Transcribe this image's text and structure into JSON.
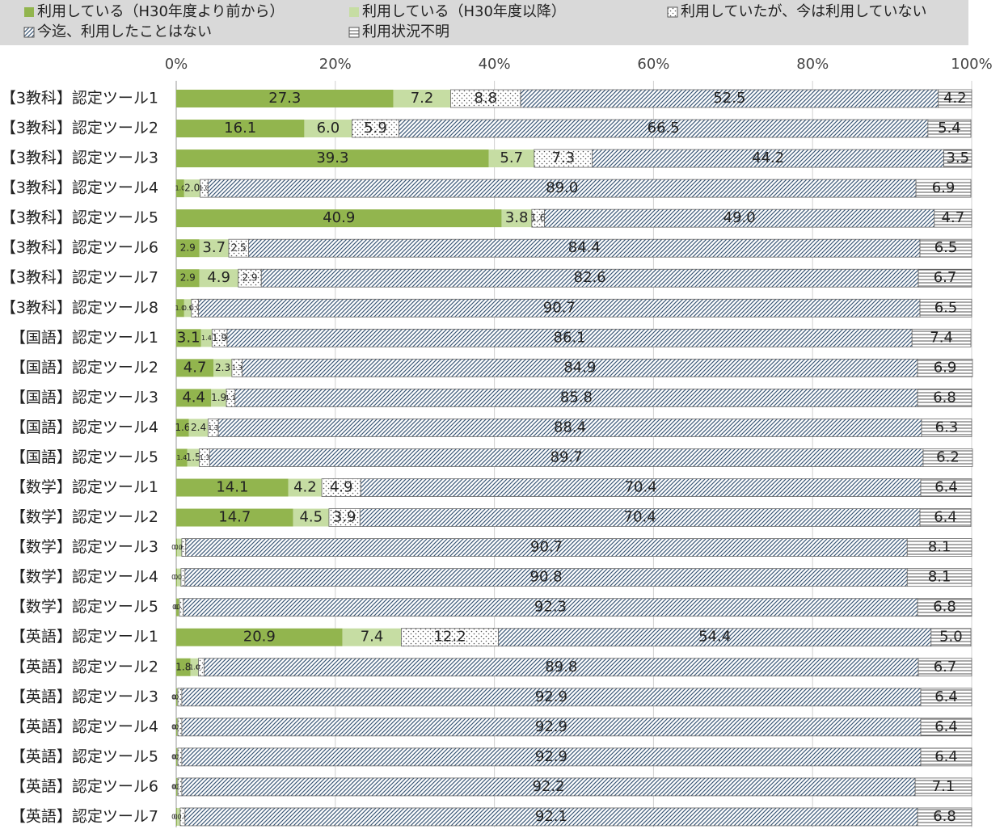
{
  "chart_data": {
    "type": "stacked_bar_horizontal",
    "categories": [
      "【3教科】認定ツール1",
      "【3教科】認定ツール2",
      "【3教科】認定ツール3",
      "【3教科】認定ツール4",
      "【3教科】認定ツール5",
      "【3教科】認定ツール6",
      "【3教科】認定ツール7",
      "【3教科】認定ツール8",
      "【国語】認定ツール1",
      "【国語】認定ツール2",
      "【国語】認定ツール3",
      "【国語】認定ツール4",
      "【国語】認定ツール5",
      "【数学】認定ツール1",
      "【数学】認定ツール2",
      "【数学】認定ツール3",
      "【数学】認定ツール4",
      "【数学】認定ツール5",
      "【英語】認定ツール1",
      "【英語】認定ツール2",
      "【英語】認定ツール3",
      "【英語】認定ツール4",
      "【英語】認定ツール5",
      "【英語】認定ツール6",
      "【英語】認定ツール7"
    ],
    "series": [
      {
        "name": "利用している（H30年度より前から）",
        "color": "#92b54e",
        "values": [
          27.3,
          16.1,
          39.3,
          1.0,
          40.9,
          2.9,
          2.9,
          1.0,
          3.1,
          4.7,
          4.4,
          1.6,
          1.4,
          14.1,
          14.7,
          0.1,
          0.1,
          0.3,
          20.9,
          1.8,
          0.1,
          0.1,
          0.1,
          0.1,
          0.1
        ],
        "value_labels": [
          "27.3",
          "16.1",
          "39.3",
          "1.0",
          "40.9",
          "2.9",
          "2.9",
          "1.0",
          "3.1",
          "4.7",
          "4.4",
          "1.6",
          "1.4",
          "14.1",
          "14.7",
          "0.1",
          "0.1",
          "0.3",
          "20.9",
          "1.8",
          "0.1",
          "0.1",
          "0.1",
          "0.1",
          "0.1"
        ]
      },
      {
        "name": "利用している（H30年度以降）",
        "color": "#c6dda3",
        "values": [
          7.2,
          6.0,
          5.7,
          2.0,
          3.8,
          3.7,
          4.9,
          0.9,
          1.4,
          2.3,
          1.9,
          2.4,
          1.5,
          4.2,
          4.5,
          0.6,
          0.5,
          0.1,
          7.4,
          1.0,
          0.1,
          0.1,
          0.1,
          0.1,
          0.4
        ],
        "value_labels": [
          "7.2",
          "6.0",
          "5.7",
          "2.0",
          "3.8",
          "3.7",
          "4.9",
          "0.9",
          "1.4",
          "2.3",
          "1.9",
          "2.4",
          "1.5",
          "4.2",
          "4.5",
          "0.6",
          "0.5",
          "0.1",
          "7.4",
          "1.0",
          "0.1",
          "0.1",
          "0.1",
          "0.1",
          "0.4"
        ]
      },
      {
        "name": "利用していたが、今は利用していない",
        "color": "#555555",
        "pattern": "dots",
        "values": [
          8.8,
          5.9,
          7.3,
          1.0,
          1.6,
          2.5,
          2.9,
          0.9,
          1.9,
          1.3,
          1.1,
          1.3,
          1.3,
          4.9,
          3.9,
          0.5,
          0.5,
          0.5,
          12.2,
          0.7,
          0.5,
          0.5,
          0.5,
          0.5,
          0.6
        ],
        "value_labels": [
          "8.8",
          "5.9",
          "7.3",
          "1.0",
          "1.6",
          "2.5",
          "2.9",
          "0.9",
          "1.9",
          "1.3",
          "1.1",
          "1.3",
          "1.3",
          "4.9",
          "3.9",
          "0.5",
          "0.5",
          "0.5",
          "12.2",
          "0.7",
          "0.5",
          "0.5",
          "0.5",
          "0.5",
          "0.6"
        ]
      },
      {
        "name": "今迄、利用したことはない",
        "color": "#3b5878",
        "pattern": "hatch",
        "values": [
          52.5,
          66.5,
          44.2,
          89.0,
          49.0,
          84.4,
          82.6,
          90.7,
          86.1,
          84.9,
          85.8,
          88.4,
          89.7,
          70.4,
          70.4,
          90.7,
          90.8,
          92.3,
          54.4,
          89.8,
          92.9,
          92.9,
          92.9,
          92.2,
          92.1
        ],
        "value_labels": [
          "52.5",
          "66.5",
          "44.2",
          "89.0",
          "49.0",
          "84.4",
          "82.6",
          "90.7",
          "86.1",
          "84.9",
          "85.8",
          "88.4",
          "89.7",
          "70.4",
          "70.4",
          "90.7",
          "90.8",
          "92.3",
          "54.4",
          "89.8",
          "92.9",
          "92.9",
          "92.9",
          "92.2",
          "92.1"
        ]
      },
      {
        "name": "利用状況不明",
        "color": "#555555",
        "pattern": "lines",
        "values": [
          4.2,
          5.4,
          3.5,
          6.9,
          4.7,
          6.5,
          6.7,
          6.5,
          7.4,
          6.9,
          6.8,
          6.3,
          6.2,
          6.4,
          6.4,
          8.1,
          8.1,
          6.8,
          5.0,
          6.7,
          6.4,
          6.4,
          6.4,
          7.1,
          6.8
        ],
        "value_labels": [
          "4.2",
          "5.4",
          "3.5",
          "6.9",
          "4.7",
          "6.5",
          "6.7",
          "6.5",
          "7.4",
          "6.9",
          "6.8",
          "6.3",
          "6.2",
          "6.4",
          "6.4",
          "8.1",
          "8.1",
          "6.8",
          "5.0",
          "6.7",
          "6.4",
          "6.4",
          "6.4",
          "7.1",
          "6.8"
        ]
      }
    ],
    "xlim": [
      0,
      100
    ],
    "xticks": [
      {
        "value": 0,
        "label": "0%"
      },
      {
        "value": 20,
        "label": "20%"
      },
      {
        "value": 40,
        "label": "40%"
      },
      {
        "value": 60,
        "label": "60%"
      },
      {
        "value": 80,
        "label": "80%"
      },
      {
        "value": 100,
        "label": "100%"
      }
    ],
    "grid": true,
    "legend": "top"
  }
}
